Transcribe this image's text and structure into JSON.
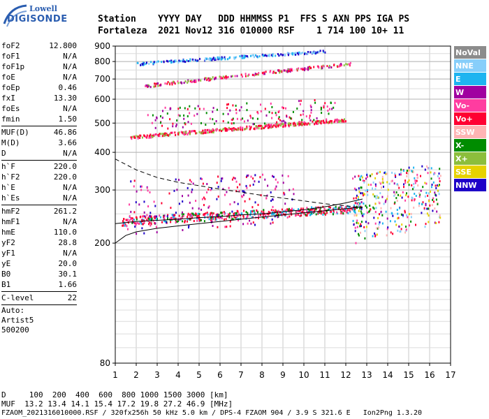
{
  "logo": {
    "line1": "Lowell",
    "line2": "DIGISONDE"
  },
  "header": {
    "row1": "Station    YYYY DAY   DDD HHMMSS P1  FFS S AXN PPS IGA PS",
    "row2": "Fortaleza  2021 Nov12 316 010000 RSF    1 714 100 10+ 11"
  },
  "params": {
    "group1": [
      {
        "name": "foF2",
        "value": "12.800"
      },
      {
        "name": "foF1",
        "value": "N/A"
      },
      {
        "name": "foF1p",
        "value": "N/A"
      },
      {
        "name": "foE",
        "value": "N/A"
      },
      {
        "name": "foEp",
        "value": "0.46"
      },
      {
        "name": "fxI",
        "value": "13.30"
      },
      {
        "name": "foEs",
        "value": "N/A"
      },
      {
        "name": "fmin",
        "value": "1.50"
      }
    ],
    "group2": [
      {
        "name": "MUF(D)",
        "value": "46.86"
      },
      {
        "name": "M(D)",
        "value": "3.66"
      },
      {
        "name": "D",
        "value": "N/A"
      }
    ],
    "group3": [
      {
        "name": "h`F",
        "value": "220.0"
      },
      {
        "name": "h`F2",
        "value": "220.0"
      },
      {
        "name": "h`E",
        "value": "N/A"
      },
      {
        "name": "h`Es",
        "value": "N/A"
      }
    ],
    "group4": [
      {
        "name": "hmF2",
        "value": "261.2"
      },
      {
        "name": "hmF1",
        "value": "N/A"
      },
      {
        "name": "hmE",
        "value": "110.0"
      },
      {
        "name": "yF2",
        "value": "28.8"
      },
      {
        "name": "yF1",
        "value": "N/A"
      },
      {
        "name": "yE",
        "value": "20.0"
      },
      {
        "name": "B0",
        "value": "30.1"
      },
      {
        "name": "B1",
        "value": "1.66"
      }
    ],
    "clevel": {
      "name": "C-level",
      "value": "22"
    },
    "auto": [
      "Auto:",
      "Artist5",
      "500200"
    ]
  },
  "footer": {
    "line1": "D     100  200  400  600  800 1000 1500 3000 [km]",
    "line2": "MUF  13.2 13.4 14.1 15.4 17.2 19.8 27.2 46.9 [MHz]",
    "line3": "FZAOM_2021316010000.RSF / 320fx256h 50 kHz 5.0 km / DPS-4 FZAOM 904 / 3.9 S 321.6 E   Ion2Png 1.3.20"
  },
  "legend": [
    {
      "label": "NoVal",
      "color": "#8c8c8c"
    },
    {
      "label": "NNE",
      "color": "#87cefa"
    },
    {
      "label": "E",
      "color": "#1eb4f0"
    },
    {
      "label": "W",
      "color": "#a000a0"
    },
    {
      "label": "Vo-",
      "color": "#ff3ca0"
    },
    {
      "label": "Vo+",
      "color": "#ff0032"
    },
    {
      "label": "SSW",
      "color": "#ffb4b4"
    },
    {
      "label": "X-",
      "color": "#008c00"
    },
    {
      "label": "X+",
      "color": "#8cbe3c"
    },
    {
      "label": "SSE",
      "color": "#e6d200"
    },
    {
      "label": "NNW",
      "color": "#1e00c8"
    }
  ],
  "chart_data": {
    "type": "scatter",
    "xlim": [
      1,
      17
    ],
    "ylim": [
      80,
      900
    ],
    "yscale": "log",
    "xticks": [
      "1",
      "2",
      "3",
      "4",
      "5",
      "6",
      "7",
      "8",
      "9",
      "10",
      "11",
      "12",
      "13",
      "14",
      "15",
      "16",
      "17"
    ],
    "yticks": [
      {
        "v": 80,
        "label": "80"
      },
      {
        "v": 200,
        "label": "200"
      },
      {
        "v": 300,
        "label": "300"
      },
      {
        "v": 400,
        "label": "400"
      },
      {
        "v": 500,
        "label": "500"
      },
      {
        "v": 600,
        "label": "600"
      },
      {
        "v": 700,
        "label": "700"
      },
      {
        "v": 800,
        "label": "800"
      },
      {
        "v": 900,
        "label": "900"
      }
    ],
    "grid": true,
    "bands": [
      {
        "name": "F1-trace",
        "color": "#ff0032",
        "x0": 1.3,
        "x1": 12.7,
        "h0": 238,
        "h1": 262,
        "spread": 8,
        "n": 520,
        "colors": [
          "#ff0032",
          "#ff0032",
          "#1eb4f0",
          "#008c00",
          "#ff3ca0"
        ]
      },
      {
        "name": "F1-spread",
        "color": "#a000a0",
        "x0": 1.5,
        "x1": 9.5,
        "h0": 270,
        "h1": 290,
        "spread": 55,
        "n": 200,
        "colors": [
          "#a000a0",
          "#ff3ca0",
          "#ff0032",
          "#1e00c8"
        ]
      },
      {
        "name": "F2-trace",
        "color": "#ff0032",
        "x0": 1.7,
        "x1": 12.0,
        "h0": 450,
        "h1": 515,
        "spread": 6,
        "n": 360,
        "colors": [
          "#ff0032",
          "#ff0032",
          "#ff3ca0",
          "#8cbe3c"
        ]
      },
      {
        "name": "F2-spread",
        "color": "#ff0032",
        "x0": 2.5,
        "x1": 11.5,
        "h0": 520,
        "h1": 560,
        "spread": 45,
        "n": 160,
        "colors": [
          "#ff0032",
          "#a000a0",
          "#ff3ca0",
          "#008c00"
        ]
      },
      {
        "name": "F3-trace",
        "color": "#ff0032",
        "x0": 2.4,
        "x1": 12.2,
        "h0": 668,
        "h1": 790,
        "spread": 8,
        "n": 200,
        "colors": [
          "#ff0032",
          "#a000a0",
          "#8cbe3c",
          "#ff3ca0"
        ]
      },
      {
        "name": "F3-high",
        "color": "#87cefa",
        "x0": 2.0,
        "x1": 11.0,
        "h0": 790,
        "h1": 870,
        "spread": 8,
        "n": 200,
        "colors": [
          "#87cefa",
          "#1eb4f0",
          "#1e00c8"
        ]
      },
      {
        "name": "spread-F",
        "color": "#1eb4f0",
        "x0": 12.3,
        "x1": 16.5,
        "h0": 270,
        "h1": 300,
        "spread": 70,
        "n": 360,
        "colors": [
          "#1e00c8",
          "#e6d200",
          "#ff0032",
          "#1eb4f0",
          "#a000a0",
          "#ff3ca0",
          "#008c00",
          "#ffb4b4",
          "#87cefa"
        ]
      }
    ],
    "lines": [
      {
        "name": "profile",
        "style": "solid",
        "points": [
          [
            1,
            200
          ],
          [
            1.5,
            212
          ],
          [
            2,
            218
          ],
          [
            3,
            224
          ],
          [
            4,
            228
          ],
          [
            5,
            232
          ],
          [
            6,
            236
          ],
          [
            7,
            240
          ],
          [
            8,
            244
          ],
          [
            9,
            248
          ],
          [
            10,
            252
          ],
          [
            11,
            256
          ],
          [
            12,
            260
          ],
          [
            12.8,
            264
          ]
        ]
      },
      {
        "name": "model",
        "style": "dashed",
        "points": [
          [
            1,
            380
          ],
          [
            2,
            350
          ],
          [
            3,
            330
          ],
          [
            4,
            318
          ],
          [
            5,
            310
          ],
          [
            6,
            302
          ],
          [
            7,
            295
          ],
          [
            8,
            288
          ],
          [
            9,
            282
          ],
          [
            10,
            276
          ],
          [
            11,
            270
          ],
          [
            12,
            266
          ],
          [
            12.8,
            262
          ]
        ]
      },
      {
        "name": "fit",
        "style": "solid",
        "points": [
          [
            1,
            232
          ],
          [
            2,
            236
          ],
          [
            3,
            238
          ],
          [
            4,
            240
          ],
          [
            5,
            243
          ],
          [
            6,
            245
          ],
          [
            7,
            248
          ],
          [
            8,
            250
          ],
          [
            9,
            254
          ],
          [
            10,
            258
          ],
          [
            11,
            264
          ],
          [
            12,
            272
          ],
          [
            12.8,
            280
          ]
        ]
      }
    ]
  }
}
